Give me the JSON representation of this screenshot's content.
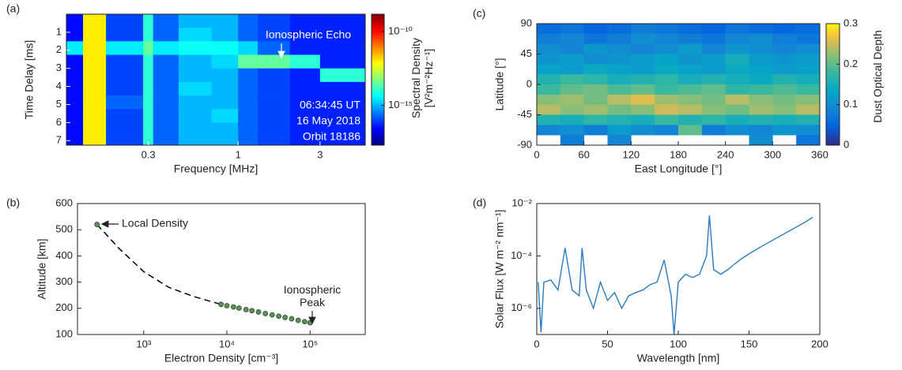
{
  "chart_data": [
    {
      "type": "heatmap",
      "panel_label": "(a)",
      "xlabel": "Frequency [MHz]",
      "ylabel": "Time Delay [ms]",
      "xscale": "log",
      "y_inverted": true,
      "xlim": [
        0.1,
        5.5
      ],
      "xticks": [
        0.3,
        1,
        3
      ],
      "ylim": [
        0,
        7.25
      ],
      "yticks": [
        1,
        2,
        3,
        4,
        5,
        6,
        7
      ],
      "x_edges": [
        0.1,
        0.125,
        0.17,
        0.28,
        0.32,
        0.45,
        0.7,
        1.0,
        1.3,
        2.0,
        3.0,
        5.5
      ],
      "y_edges": [
        0,
        0.75,
        1.5,
        2.25,
        3,
        3.75,
        4.5,
        5.25,
        6,
        6.75,
        7.25
      ],
      "z": [
        [
          3e-17,
          1e-12,
          1e-16,
          1e-14,
          2e-16,
          1e-15,
          1e-15,
          2e-16,
          1e-16,
          5e-17,
          5e-17
        ],
        [
          3e-17,
          1e-12,
          1e-16,
          1e-14,
          2e-16,
          2e-15,
          1e-15,
          2e-16,
          1e-16,
          5e-17,
          5e-17
        ],
        [
          3e-15,
          1e-12,
          3e-15,
          3e-14,
          3e-15,
          5e-15,
          5e-15,
          2e-15,
          2e-16,
          5e-17,
          5e-17
        ],
        [
          3e-17,
          1e-12,
          1e-16,
          1e-14,
          2e-16,
          1e-15,
          2e-15,
          3e-14,
          3e-14,
          1e-14,
          5e-17
        ],
        [
          3e-17,
          1e-12,
          1e-16,
          1e-14,
          2e-16,
          1e-15,
          1e-15,
          2e-16,
          1e-16,
          5e-17,
          1e-14
        ],
        [
          3e-17,
          1e-12,
          1e-16,
          1e-14,
          2e-16,
          2e-15,
          1e-15,
          2e-16,
          1e-16,
          5e-17,
          5e-17
        ],
        [
          3e-17,
          1e-12,
          2e-16,
          1e-14,
          2e-16,
          1e-15,
          1e-15,
          2e-16,
          1e-16,
          5e-17,
          5e-17
        ],
        [
          3e-17,
          1e-12,
          1e-16,
          1e-14,
          2e-16,
          1e-15,
          2e-15,
          2e-16,
          1e-16,
          5e-17,
          5e-17
        ],
        [
          3e-17,
          1e-12,
          1e-16,
          1e-14,
          2e-16,
          1e-15,
          1e-15,
          2e-16,
          1e-16,
          5e-17,
          5e-17
        ],
        [
          3e-17,
          1e-12,
          1e-16,
          1e-14,
          2e-16,
          1e-15,
          1e-15,
          2e-16,
          1e-16,
          5e-17,
          5e-17
        ]
      ],
      "colorbar": {
        "label": "Spectral Density [V²m⁻²Hz⁻¹]",
        "log": true,
        "colormap": "jet",
        "lim": [
          2e-18,
          1.5e-09
        ],
        "ticks": [
          {
            "value": 1e-10,
            "label": "10⁻¹⁰"
          },
          {
            "value": 1e-15,
            "label": "10⁻¹⁵"
          }
        ]
      },
      "annotations": [
        "Ionospheric Echo",
        "06:34:45 UT",
        "16 May 2018",
        "Orbit 18186"
      ]
    },
    {
      "type": "scatter",
      "panel_label": "(b)",
      "xlabel": "Electron Density [cm⁻³]",
      "ylabel": "Altitude [km]",
      "xscale": "log",
      "xlim": [
        160,
        460000
      ],
      "xticks": [
        {
          "value": 1000,
          "label": "10³"
        },
        {
          "value": 10000,
          "label": "10⁴"
        },
        {
          "value": 100000,
          "label": "10⁵"
        }
      ],
      "ylim": [
        100,
        600
      ],
      "yticks": [
        100,
        200,
        300,
        400,
        500,
        600
      ],
      "series": [
        {
          "style": "dashed",
          "color": "#000000",
          "x": [
            275,
            500,
            1000,
            2000,
            4000,
            8500
          ],
          "y": [
            520,
            430,
            340,
            280,
            245,
            215
          ]
        },
        {
          "style": "markers",
          "color": "#5b8f5b",
          "x": [
            275,
            8500,
            10000,
            12000,
            14000,
            17000,
            20000,
            24000,
            29000,
            35000,
            42000,
            50000,
            60000,
            72000,
            86000,
            100000
          ],
          "y": [
            520,
            215,
            210,
            205,
            201,
            195,
            191,
            186,
            180,
            175,
            170,
            165,
            160,
            154,
            149,
            145
          ]
        }
      ],
      "annotations": [
        "Local Density",
        "Ionospheric Peak"
      ]
    },
    {
      "type": "heatmap",
      "panel_label": "(c)",
      "xlabel": "East Longitude [°]",
      "ylabel": "Latitude [°]",
      "xlim": [
        0,
        360
      ],
      "xticks": [
        0,
        60,
        120,
        180,
        240,
        300,
        360
      ],
      "ylim": [
        -90,
        90
      ],
      "yticks": [
        -90,
        -45,
        0,
        45,
        90
      ],
      "x_edges": [
        0,
        30,
        60,
        90,
        120,
        150,
        180,
        210,
        240,
        270,
        300,
        330,
        360
      ],
      "y_edges": [
        90,
        75,
        60,
        45,
        30,
        15,
        0,
        -15,
        -30,
        -45,
        -60,
        -75,
        -90
      ],
      "z": [
        [
          0.06,
          0.07,
          0.05,
          0.06,
          0.08,
          0.07,
          0.06,
          0.05,
          0.07,
          0.06,
          0.05,
          0.06
        ],
        [
          0.08,
          0.09,
          0.07,
          0.08,
          0.1,
          0.09,
          0.08,
          0.07,
          0.09,
          0.1,
          0.08,
          0.07
        ],
        [
          0.1,
          0.09,
          0.11,
          0.1,
          0.09,
          0.1,
          0.12,
          0.09,
          0.11,
          0.1,
          0.09,
          0.1
        ],
        [
          0.11,
          0.12,
          0.1,
          0.11,
          0.12,
          0.13,
          0.11,
          0.12,
          0.15,
          0.12,
          0.11,
          0.12
        ],
        [
          0.13,
          0.12,
          0.14,
          0.13,
          0.12,
          0.14,
          0.13,
          0.12,
          0.14,
          0.13,
          0.12,
          0.13
        ],
        [
          0.16,
          0.18,
          0.17,
          0.15,
          0.16,
          0.17,
          0.15,
          0.16,
          0.15,
          0.14,
          0.16,
          0.15
        ],
        [
          0.18,
          0.2,
          0.21,
          0.19,
          0.2,
          0.18,
          0.19,
          0.2,
          0.17,
          0.18,
          0.19,
          0.18
        ],
        [
          0.22,
          0.23,
          0.21,
          0.24,
          0.26,
          0.23,
          0.22,
          0.21,
          0.24,
          0.22,
          0.21,
          0.22
        ],
        [
          0.24,
          0.22,
          0.23,
          0.21,
          0.22,
          0.25,
          0.24,
          0.22,
          0.21,
          0.23,
          0.22,
          0.24
        ],
        [
          0.16,
          0.15,
          0.17,
          0.16,
          0.15,
          0.18,
          0.16,
          0.17,
          0.15,
          0.16,
          0.15,
          0.16
        ],
        [
          0.09,
          0.1,
          0.08,
          0.12,
          0.1,
          0.09,
          0.2,
          0.08,
          0.1,
          0.09,
          0.11,
          0.1
        ],
        [
          null,
          0.08,
          null,
          0.09,
          null,
          null,
          null,
          null,
          null,
          0.1,
          null,
          0.07
        ]
      ],
      "colorbar": {
        "label": "Dust Optical Depth",
        "log": false,
        "colormap": "parula",
        "lim": [
          0,
          0.3
        ],
        "ticks": [
          0,
          0.1,
          0.2,
          0.3
        ]
      }
    },
    {
      "type": "line",
      "panel_label": "(d)",
      "xlabel": "Wavelength [nm]",
      "ylabel": "Solar Flux [W m⁻² nm⁻¹]",
      "yscale": "log",
      "xlim": [
        0,
        200
      ],
      "xticks": [
        0,
        50,
        100,
        150,
        200
      ],
      "ylim": [
        1e-07,
        0.01
      ],
      "yticks": [
        {
          "value": 1e-06,
          "label": "10⁻⁶"
        },
        {
          "value": 0.0001,
          "label": "10⁻⁴"
        },
        {
          "value": 0.01,
          "label": "10⁻²"
        }
      ],
      "series": [
        {
          "color": "#2a7bbf",
          "x": [
            1,
            3,
            5,
            10,
            15,
            20,
            25,
            30,
            32,
            35,
            40,
            45,
            50,
            55,
            60,
            65,
            70,
            75,
            80,
            85,
            90,
            95,
            97,
            100,
            105,
            110,
            115,
            120,
            122,
            125,
            130,
            135,
            140,
            145,
            150,
            160,
            170,
            180,
            190,
            195
          ],
          "values": [
            1e-05,
            1.2e-07,
            1e-05,
            1.2e-05,
            5e-06,
            0.0002,
            5e-06,
            3e-06,
            0.0002,
            5e-06,
            1e-06,
            1e-05,
            2e-06,
            4e-06,
            1e-06,
            3e-06,
            4e-06,
            5e-06,
            8e-06,
            1e-05,
            7e-05,
            3e-06,
            1e-07,
            1e-05,
            2e-05,
            1.5e-05,
            2e-05,
            0.0001,
            0.0035,
            3e-05,
            2e-05,
            3e-05,
            5e-05,
            8e-05,
            0.00012,
            0.00025,
            0.0005,
            0.001,
            0.002,
            0.003
          ]
        }
      ]
    }
  ]
}
